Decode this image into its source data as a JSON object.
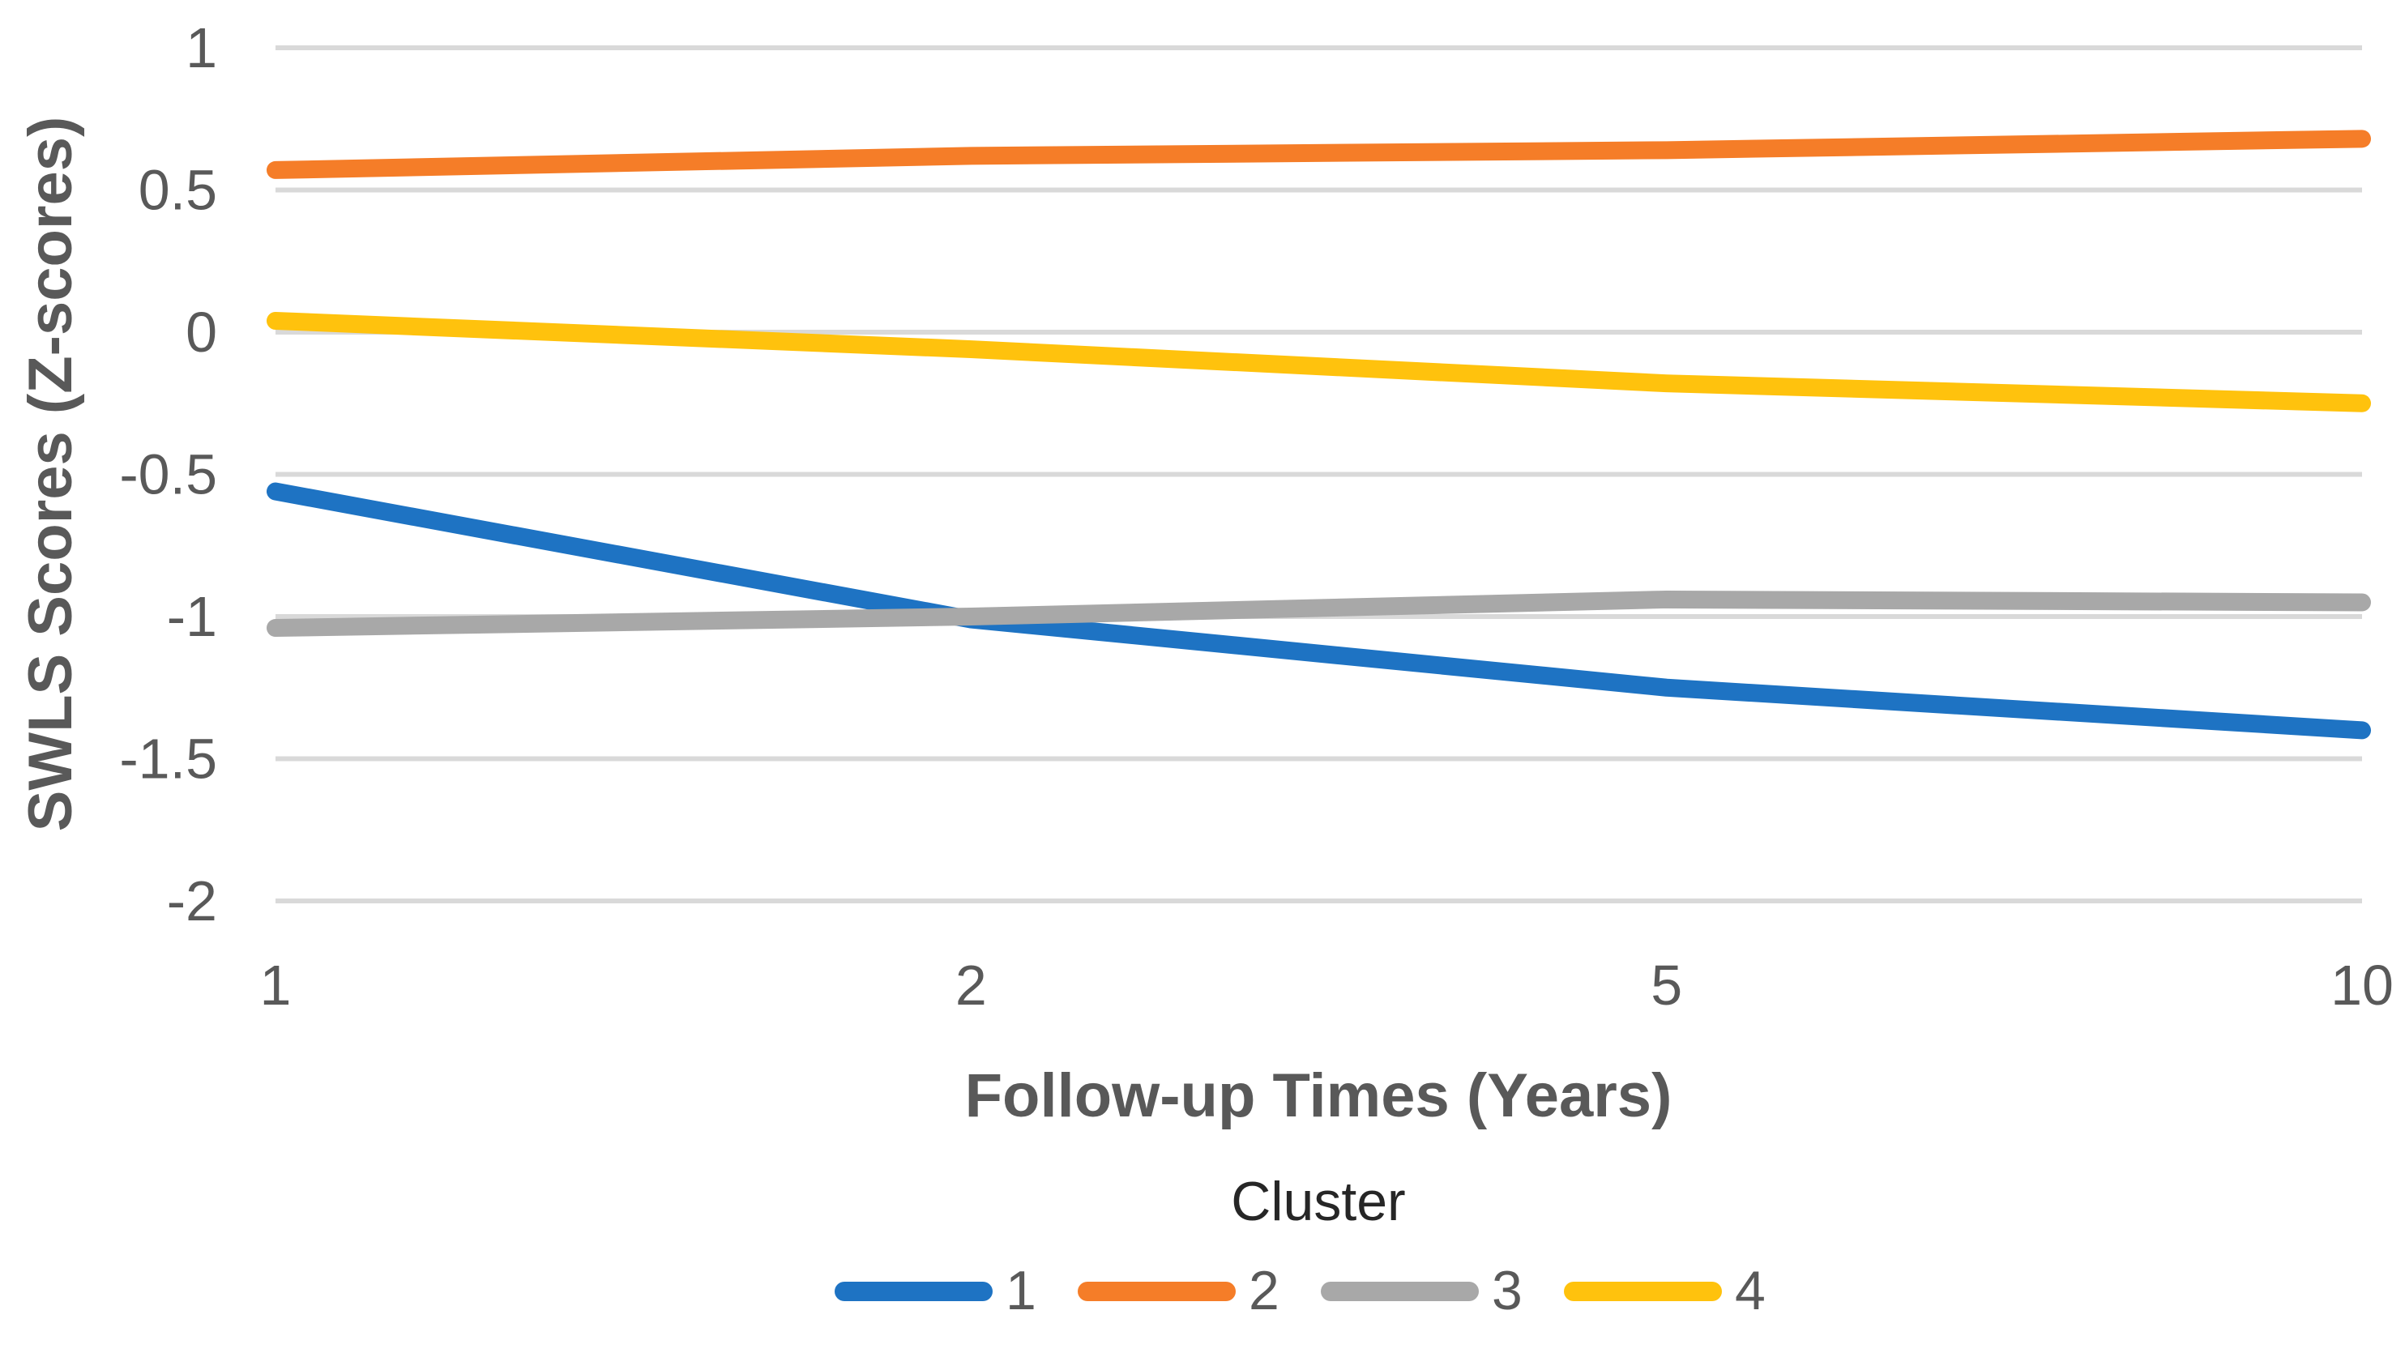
{
  "chart_data": {
    "type": "line",
    "title": "",
    "xlabel": "Follow-up Times (Years)",
    "ylabel": "SWLS Scores (Z-scores)",
    "legend_title": "Cluster",
    "legend_position": "bottom",
    "grid": "horizontal-only",
    "categories": [
      "1",
      "2",
      "5",
      "10"
    ],
    "y_ticks": [
      1,
      0.5,
      0,
      -0.5,
      -1,
      -1.5,
      -2
    ],
    "y_tick_labels": [
      "1",
      "0.5",
      "0",
      "-0.5",
      "-1",
      "-1.5",
      "-2"
    ],
    "ylim": [
      -2,
      1
    ],
    "series": [
      {
        "name": "1",
        "color": "#1E73C3",
        "values": [
          -0.56,
          -1.01,
          -1.25,
          -1.4
        ]
      },
      {
        "name": "2",
        "color": "#F57D28",
        "values": [
          0.57,
          0.62,
          0.64,
          0.68
        ]
      },
      {
        "name": "3",
        "color": "#A8A8A8",
        "values": [
          -1.04,
          -1.0,
          -0.94,
          -0.95
        ]
      },
      {
        "name": "4",
        "color": "#FFC20D",
        "values": [
          0.04,
          -0.06,
          -0.18,
          -0.25
        ]
      }
    ],
    "colors": {
      "gridline": "#D9D9D9",
      "tick_text": "#595959",
      "axis_title_text": "#595959",
      "legend_title_text": "#262626",
      "background": "#FFFFFF"
    }
  }
}
